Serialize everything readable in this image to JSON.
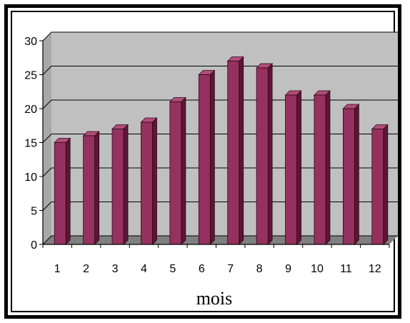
{
  "chart_data": {
    "type": "bar",
    "categories": [
      "1",
      "2",
      "3",
      "4",
      "5",
      "6",
      "7",
      "8",
      "9",
      "10",
      "11",
      "12"
    ],
    "values": [
      15,
      16,
      17,
      18,
      21,
      25,
      27,
      26,
      22,
      22,
      20,
      17
    ],
    "xlabel": "mois",
    "ylabel": "",
    "ylim": [
      0,
      30
    ],
    "yticks": [
      "0",
      "5",
      "10",
      "15",
      "20",
      "25",
      "30"
    ],
    "grid": true,
    "legend": "none",
    "colors": {
      "bar_front": "#96315F",
      "bar_side": "#5E1437",
      "bar_top": "#B04D78",
      "wall": "#C0C0C0",
      "floor": "#808080"
    }
  }
}
